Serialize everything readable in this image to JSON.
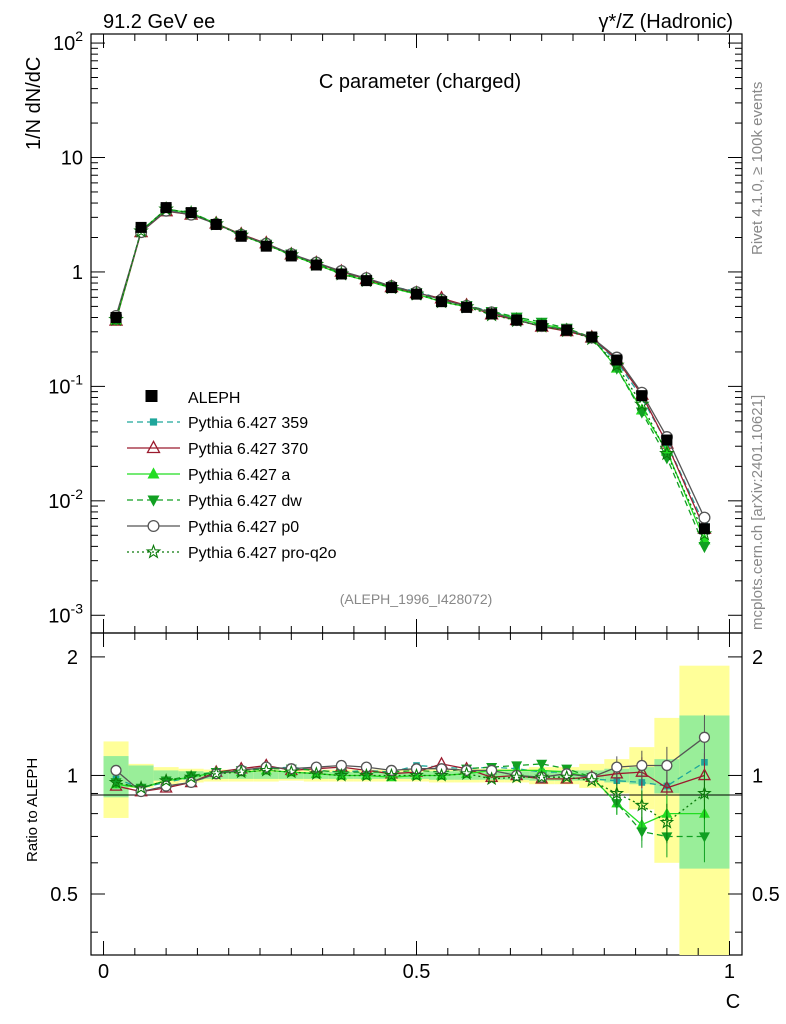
{
  "header": {
    "left": "91.2 GeV ee",
    "right": "γ*/Z (Hadronic)"
  },
  "side": {
    "rivet": "Rivet 4.1.0, ≥ 100k events",
    "mcplots": "mcplots.cern.ch [arXiv:2401.10621]"
  },
  "chart_data": {
    "type": "line",
    "title": "C parameter (charged)",
    "analysis": "(ALEPH_1996_I428072)",
    "ylabel": "1/N  dN/dC",
    "xlabel": "C",
    "ratio_ylabel": "Ratio to ALEPH",
    "xlim": [
      -0.02,
      1.02
    ],
    "ylim": [
      0.0007,
      120
    ],
    "ratio_ylim": [
      0.35,
      2.3
    ],
    "yscale": "log",
    "legend_position": "middle-left",
    "y_ticks": [
      {
        "v": 0.001,
        "b": "10",
        "e": "-3"
      },
      {
        "v": 0.01,
        "b": "10",
        "e": "-2"
      },
      {
        "v": 0.1,
        "b": "10",
        "e": "-1"
      },
      {
        "v": 1,
        "b": "1",
        "e": ""
      },
      {
        "v": 10,
        "b": "10",
        "e": ""
      },
      {
        "v": 100,
        "b": "10",
        "e": "2"
      }
    ],
    "x_ticks": [
      {
        "v": 0,
        "label": "0"
      },
      {
        "v": 0.5,
        "label": "0.5"
      },
      {
        "v": 1,
        "label": "1"
      }
    ],
    "ratio_ticks": [
      {
        "v": 0.5,
        "label": "0.5"
      },
      {
        "v": 1,
        "label": "1"
      },
      {
        "v": 2,
        "label": "2"
      }
    ],
    "x": [
      0.02,
      0.06,
      0.1,
      0.14,
      0.18,
      0.22,
      0.26,
      0.3,
      0.34,
      0.38,
      0.42,
      0.46,
      0.5,
      0.54,
      0.58,
      0.62,
      0.66,
      0.7,
      0.74,
      0.78,
      0.82,
      0.86,
      0.9,
      0.96
    ],
    "bin_edges": [
      0,
      0.04,
      0.08,
      0.12,
      0.16,
      0.2,
      0.24,
      0.28,
      0.32,
      0.36,
      0.4,
      0.44,
      0.48,
      0.52,
      0.56,
      0.6,
      0.64,
      0.68,
      0.72,
      0.76,
      0.8,
      0.84,
      0.88,
      0.92,
      1.0
    ],
    "band_inner": [
      0.12,
      0.06,
      0.03,
      0.025,
      0.02,
      0.02,
      0.02,
      0.02,
      0.02,
      0.02,
      0.02,
      0.02,
      0.02,
      0.025,
      0.025,
      0.025,
      0.025,
      0.03,
      0.03,
      0.03,
      0.04,
      0.05,
      0.1,
      0.42
    ],
    "band_outer": [
      0.22,
      0.07,
      0.05,
      0.04,
      0.035,
      0.035,
      0.035,
      0.03,
      0.035,
      0.035,
      0.035,
      0.035,
      0.035,
      0.04,
      0.04,
      0.04,
      0.04,
      0.05,
      0.05,
      0.07,
      0.1,
      0.18,
      0.4,
      0.9
    ],
    "data": {
      "name": "ALEPH",
      "values": [
        0.4,
        2.45,
        3.65,
        3.3,
        2.6,
        2.05,
        1.68,
        1.38,
        1.15,
        0.96,
        0.84,
        0.73,
        0.64,
        0.55,
        0.49,
        0.43,
        0.38,
        0.34,
        0.31,
        0.27,
        0.17,
        0.083,
        0.034,
        0.0057
      ]
    },
    "series": [
      {
        "name": "Pythia 6.427 359",
        "color": "#1fa69b",
        "dash": "6,4",
        "marker": "square-small",
        "ratio": [
          0.98,
          0.93,
          0.96,
          0.99,
          1.02,
          1.03,
          1.04,
          1.05,
          1.03,
          1.02,
          1.03,
          1.02,
          1.06,
          1.05,
          1.04,
          1.05,
          1.04,
          1.02,
          1.02,
          0.98,
          0.97,
          0.96,
          0.94,
          1.08
        ]
      },
      {
        "name": "Pythia 6.427 370",
        "color": "#9b1b2e",
        "dash": "",
        "marker": "triangle-open",
        "ratio": [
          0.94,
          0.91,
          0.93,
          0.96,
          1.02,
          1.04,
          1.06,
          1.03,
          1.04,
          1.05,
          1.03,
          1.01,
          1.02,
          1.07,
          1.04,
          0.99,
          1.0,
          0.98,
          0.98,
          0.99,
          1.01,
          1.02,
          0.93,
          1.0
        ]
      },
      {
        "name": "Pythia 6.427 a",
        "color": "#22dd22",
        "dash": "",
        "marker": "triangle-up",
        "ratio": [
          0.95,
          0.93,
          0.97,
          0.99,
          1.02,
          1.02,
          1.03,
          1.02,
          1.01,
          1.0,
          1.0,
          0.99,
          1.0,
          1.0,
          1.01,
          1.03,
          1.03,
          1.03,
          1.02,
          0.99,
          0.85,
          0.75,
          0.8,
          0.8
        ]
      },
      {
        "name": "Pythia 6.427 dw",
        "color": "#11a022",
        "dash": "6,4",
        "marker": "triangle-down",
        "ratio": [
          0.96,
          0.93,
          0.97,
          1.0,
          1.02,
          1.03,
          1.04,
          1.04,
          1.03,
          1.02,
          1.02,
          1.02,
          1.03,
          1.02,
          1.04,
          1.05,
          1.06,
          1.07,
          1.04,
          0.99,
          0.85,
          0.72,
          0.7,
          0.7
        ]
      },
      {
        "name": "Pythia 6.427 p0",
        "color": "#555555",
        "dash": "",
        "marker": "circle-open",
        "ratio": [
          1.03,
          0.91,
          0.94,
          0.96,
          1.01,
          1.03,
          1.05,
          1.04,
          1.05,
          1.06,
          1.05,
          1.03,
          1.04,
          1.04,
          1.03,
          1.03,
          1.0,
          0.99,
          1.01,
          0.99,
          1.05,
          1.06,
          1.06,
          1.25
        ]
      },
      {
        "name": "Pythia 6.427 pro-q2o",
        "color": "#0b7a0b",
        "dash": "2,3",
        "marker": "star-open",
        "ratio": [
          0.96,
          0.93,
          0.97,
          0.99,
          1.01,
          1.02,
          1.03,
          1.02,
          1.01,
          1.0,
          1.0,
          1.0,
          1.0,
          1.0,
          1.01,
          0.98,
          0.99,
          0.99,
          0.99,
          0.97,
          0.9,
          0.84,
          0.76,
          0.9
        ]
      }
    ]
  }
}
